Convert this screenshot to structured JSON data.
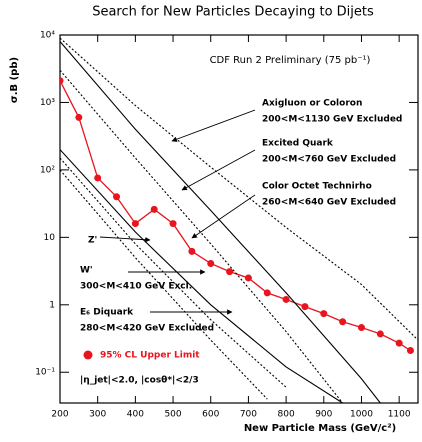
{
  "chart_data": {
    "type": "line",
    "title": "Search for New Particles Decaying to Dijets",
    "subtitle": "CDF Run 2 Preliminary (75 pb⁻¹)",
    "x_label": "New Particle Mass (GeV/c²)",
    "y_label": "σ.B (pb)",
    "cuts": "|η_jet|<2.0,  |cosθ*|<2/3",
    "log_y": true,
    "xlim": [
      200,
      1150
    ],
    "ylim": [
      0.035,
      10000
    ],
    "xticks": [
      200,
      300,
      400,
      500,
      600,
      700,
      800,
      900,
      1000,
      1100
    ],
    "yticks": [
      {
        "value": 10000,
        "label": "10⁴"
      },
      {
        "value": 1000,
        "label": "10³"
      },
      {
        "value": 100,
        "label": "10²"
      },
      10,
      1,
      {
        "value": 0.1,
        "label": "10⁻¹"
      }
    ],
    "series": [
      {
        "name": "95% CL Upper Limit",
        "color": "#e8141e",
        "marker": true,
        "x": [
          200,
          250,
          300,
          350,
          400,
          450,
          500,
          550,
          600,
          650,
          700,
          750,
          800,
          850,
          900,
          950,
          1000,
          1050,
          1100,
          1130
        ],
        "values": [
          2100,
          600,
          76,
          40,
          16,
          26,
          16,
          6.2,
          4.1,
          3.1,
          2.5,
          1.5,
          1.2,
          0.94,
          0.74,
          0.56,
          0.46,
          0.37,
          0.27,
          0.21
        ]
      },
      {
        "name": "Axigluon or Coloron",
        "note": "200<M<1130 GeV Excluded",
        "color": "#000000",
        "dash": true,
        "x": [
          200,
          400,
          600,
          800,
          1000,
          1150
        ],
        "values": [
          9000,
          900,
          110,
          14,
          2,
          0.3
        ]
      },
      {
        "name": "Excited Quark",
        "note": "200<M<760 GeV Excluded",
        "color": "#000000",
        "dash": false,
        "x": [
          200,
          400,
          600,
          800,
          1000,
          1050
        ],
        "values": [
          8000,
          400,
          25,
          1.5,
          0.08,
          0.035
        ]
      },
      {
        "name": "Color Octet Technirho",
        "note": "260<M<640 GeV Excluded",
        "color": "#000000",
        "dash": true,
        "x": [
          200,
          400,
          600,
          800,
          950
        ],
        "values": [
          3000,
          150,
          8,
          0.4,
          0.035
        ]
      },
      {
        "name": "Z'",
        "color": "#000000",
        "dash": false,
        "x": [
          200,
          400,
          600,
          800,
          950
        ],
        "values": [
          200,
          12,
          1,
          0.12,
          0.035
        ]
      },
      {
        "name": "W'",
        "note": "300<M<410 GeV Excl.",
        "color": "#000000",
        "dash": true,
        "x": [
          200,
          400,
          600,
          800
        ],
        "values": [
          150,
          8,
          0.6,
          0.06
        ]
      },
      {
        "name": "E₆ Diquark",
        "note": "280<M<420 GeV Excluded",
        "color": "#000000",
        "dash": true,
        "x": [
          200,
          400,
          600,
          750
        ],
        "values": [
          100,
          5,
          0.3,
          0.04
        ]
      }
    ]
  }
}
